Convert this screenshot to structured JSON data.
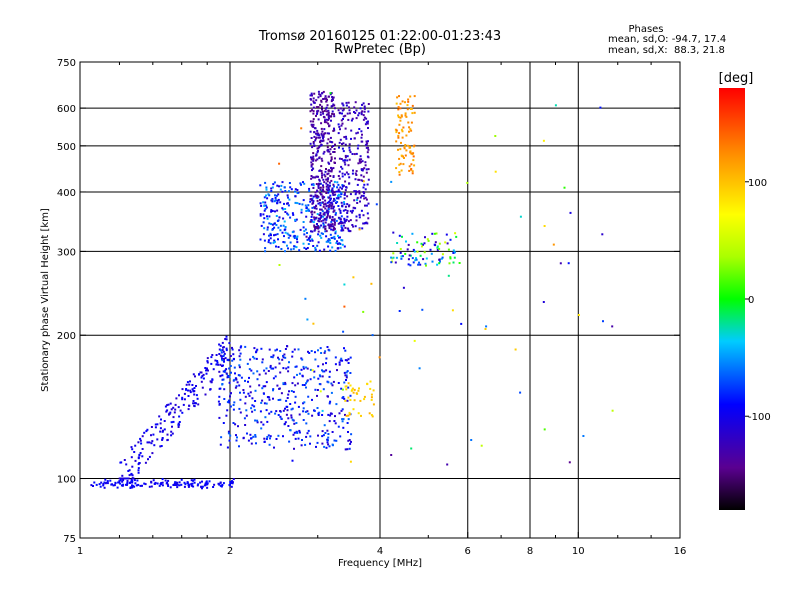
{
  "chart_data": {
    "type": "scatter",
    "title": "Tromsø 20160125 01:22:00-01:23:43",
    "subtitle": "RwPretec (Bp)",
    "phases": {
      "heading": "Phases",
      "line_o": "mean, sd,O: -94.7, 17.4",
      "line_x": "mean, sd,X:  88.3, 21.8"
    },
    "xlabel": "Frequency [MHz]",
    "ylabel": "Stationary phase Virtual Height [km]",
    "xscale": "log",
    "yscale": "log",
    "xlim": [
      1,
      16
    ],
    "ylim": [
      75,
      750
    ],
    "xticks": [
      1,
      2,
      4,
      6,
      8,
      10,
      16
    ],
    "xtick_labels": [
      "1",
      "2",
      "4",
      "6",
      "8",
      "10",
      "16"
    ],
    "vgrid": [
      2,
      4,
      6,
      8,
      10
    ],
    "yticks": [
      75,
      100,
      200,
      300,
      400,
      500,
      600,
      750
    ],
    "ytick_labels": [
      "75",
      "100",
      "200",
      "300",
      "400",
      "500",
      "600",
      "750"
    ],
    "hgrid": [
      100,
      200,
      300,
      400,
      500,
      600
    ],
    "colorbar": {
      "label": "[deg]",
      "range": [
        -180,
        180
      ],
      "ticks": [
        100,
        0,
        -100
      ],
      "tick_labels": [
        "100",
        "0",
        "-100"
      ]
    },
    "clusters": [
      {
        "name": "low-layer trace",
        "x": [
          1.05,
          2.05
        ],
        "y": [
          95,
          100
        ],
        "phase": [
          -105,
          -85
        ],
        "n": 160,
        "shape": "flat"
      },
      {
        "name": "E/F1 rising trace",
        "x": [
          1.2,
          2.0
        ],
        "y": [
          100,
          200
        ],
        "phase": [
          -115,
          -85
        ],
        "n": 220,
        "shape": "rising"
      },
      {
        "name": "F1 cloud",
        "x": [
          1.9,
          3.5
        ],
        "y": [
          115,
          190
        ],
        "phase": [
          -120,
          -60
        ],
        "n": 480,
        "shape": "cloud"
      },
      {
        "name": "F1 cusp",
        "x": [
          3.4,
          3.9
        ],
        "y": [
          135,
          160
        ],
        "phase": [
          80,
          110
        ],
        "n": 40,
        "shape": "cloud"
      },
      {
        "name": "F2 lower cloud",
        "x": [
          2.3,
          3.4
        ],
        "y": [
          300,
          420
        ],
        "phase": [
          -110,
          -40
        ],
        "n": 380,
        "shape": "cloud"
      },
      {
        "name": "F2 column A",
        "x": [
          2.9,
          3.25
        ],
        "y": [
          330,
          650
        ],
        "phase": [
          -150,
          -110
        ],
        "n": 420,
        "shape": "cloud"
      },
      {
        "name": "F2 column B",
        "x": [
          3.3,
          3.8
        ],
        "y": [
          330,
          620
        ],
        "phase": [
          -140,
          -100
        ],
        "n": 260,
        "shape": "cloud"
      },
      {
        "name": "X-mode column",
        "x": [
          4.3,
          4.7
        ],
        "y": [
          430,
          640
        ],
        "phase": [
          100,
          140
        ],
        "n": 90,
        "shape": "cloud"
      },
      {
        "name": "F2 cusp",
        "x": [
          4.2,
          5.8
        ],
        "y": [
          280,
          330
        ],
        "phase": [
          -130,
          60
        ],
        "n": 90,
        "shape": "cloud"
      },
      {
        "name": "scattered echoes",
        "x": [
          2.3,
          12.0
        ],
        "y": [
          105,
          650
        ],
        "phase": [
          -150,
          150
        ],
        "n": 70,
        "shape": "sparse"
      }
    ]
  }
}
